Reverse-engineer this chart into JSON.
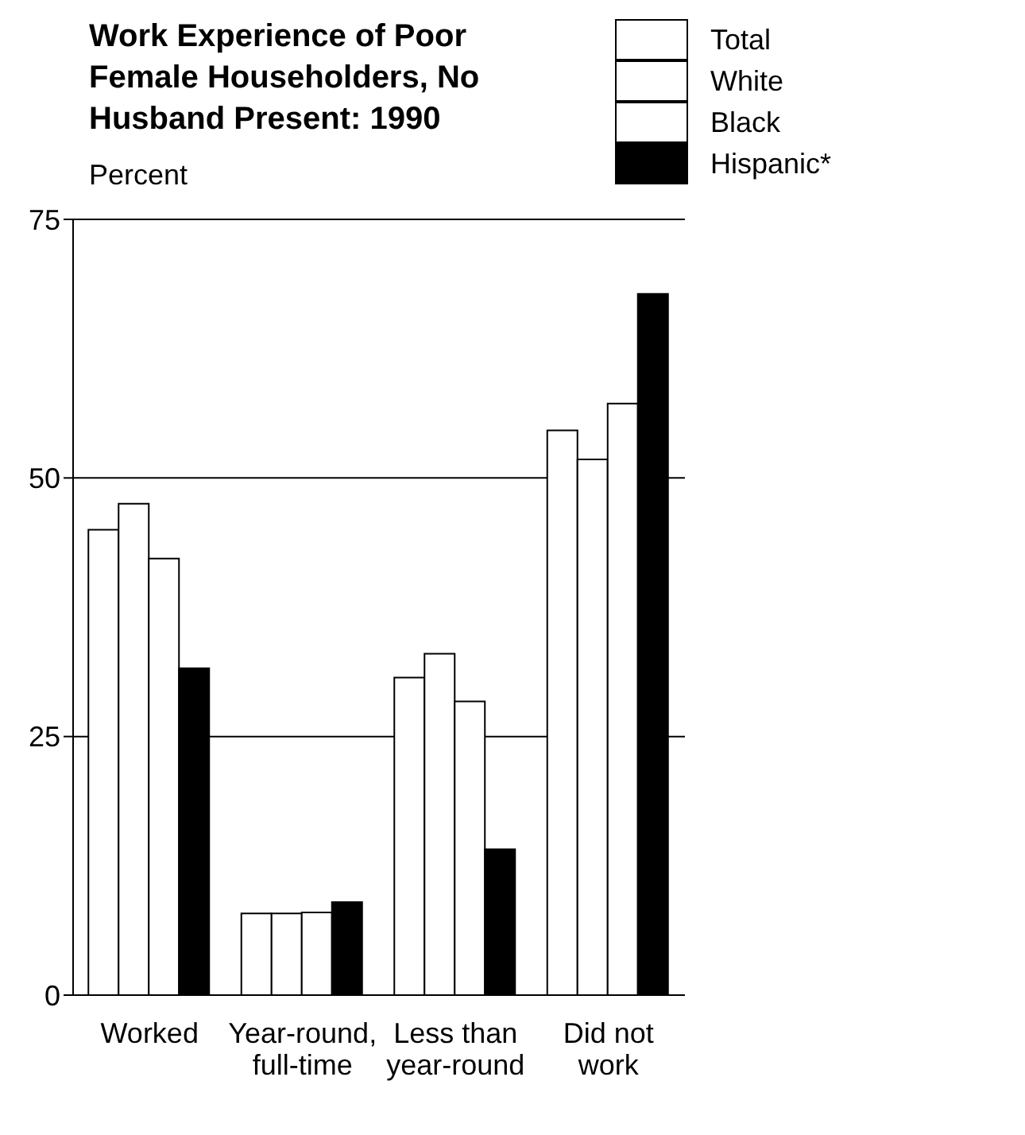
{
  "chart_data": {
    "type": "bar",
    "title": "Work Experience of Poor Female Householders, No Husband Present: 1990",
    "ylabel": "Percent",
    "categories": [
      "Worked",
      "Year-round,\nfull-time",
      "Less than\nyear-round",
      "Did not\nwork"
    ],
    "series": [
      {
        "name": "Total",
        "color": "#ffffff",
        "values": [
          45.0,
          7.9,
          30.7,
          54.6
        ]
      },
      {
        "name": "White",
        "color": "#ffffff",
        "values": [
          47.5,
          7.9,
          33.0,
          51.8
        ]
      },
      {
        "name": "Black",
        "color": "#ffffff",
        "values": [
          42.2,
          8.0,
          28.4,
          57.2
        ]
      },
      {
        "name": "Hispanic*",
        "color": "#000000",
        "values": [
          31.6,
          9.0,
          14.1,
          67.8
        ]
      }
    ],
    "ylim": [
      0,
      75
    ],
    "yticks": [
      0,
      25,
      50,
      75
    ],
    "grid": "y",
    "legend": "top right"
  }
}
